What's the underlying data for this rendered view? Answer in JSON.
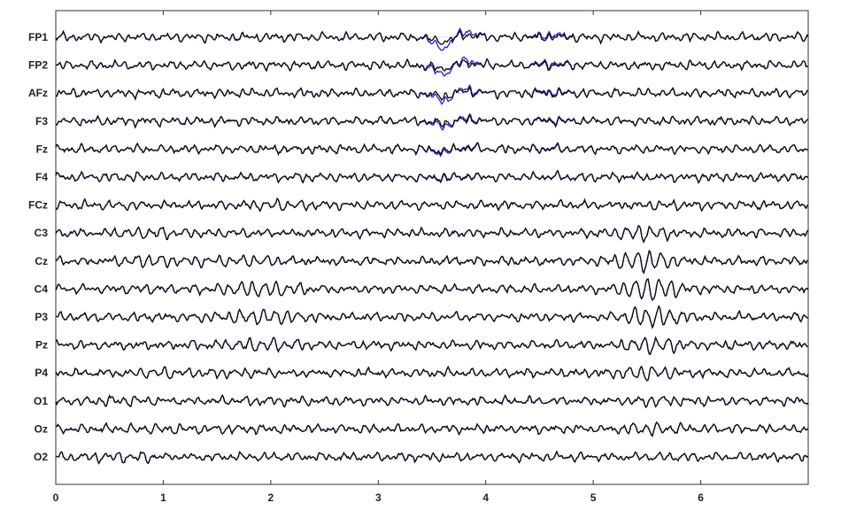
{
  "chart_data": {
    "type": "line",
    "title": "",
    "xlabel": "",
    "ylabel": "",
    "xlim": [
      0,
      7
    ],
    "xticks": [
      "0",
      "1",
      "2",
      "3",
      "4",
      "5",
      "6"
    ],
    "grid": "horizontal baselines",
    "channels": [
      "FP1",
      "FP2",
      "AFz",
      "F3",
      "Fz",
      "F4",
      "FCz",
      "C3",
      "Cz",
      "C4",
      "P3",
      "Pz",
      "P4",
      "O1",
      "Oz",
      "O2"
    ],
    "series_colors": {
      "overlay": "#2a1fd6",
      "trace": "#0a0a0a"
    },
    "events": [
      {
        "x": 3.65,
        "desc": "large frontal transient (blue overlay)"
      },
      {
        "x": 5.5,
        "desc": "high-amplitude rhythmic burst, central-parietal"
      }
    ]
  }
}
